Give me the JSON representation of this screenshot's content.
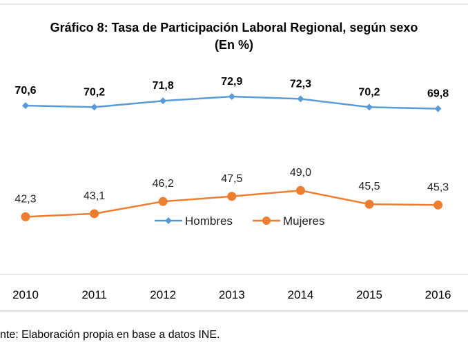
{
  "chart_data": {
    "type": "line",
    "title": "Gráfico 8: Tasa de Participación Laboral Regional, según sexo",
    "subtitle": "(En %)",
    "categories": [
      "2010",
      "2011",
      "2012",
      "2013",
      "2014",
      "2015",
      "2016"
    ],
    "series": [
      {
        "name": "Hombres",
        "values": [
          70.6,
          70.2,
          71.8,
          72.9,
          72.3,
          70.2,
          69.8
        ],
        "labels": [
          "70,6",
          "70,2",
          "71,8",
          "72,9",
          "72,3",
          "70,2",
          "69,8"
        ],
        "color": "#5B9BD5",
        "marker": "diamond"
      },
      {
        "name": "Mujeres",
        "values": [
          42.3,
          43.1,
          46.2,
          47.5,
          49.0,
          45.5,
          45.3
        ],
        "labels": [
          "42,3",
          "43,1",
          "46,2",
          "47,5",
          "49,0",
          "45,5",
          "45,3"
        ],
        "color": "#ED7D31",
        "marker": "circle"
      }
    ],
    "legend_position": "middle",
    "grid": false
  },
  "source_note": "nte: Elaboración propia en base a datos INE."
}
